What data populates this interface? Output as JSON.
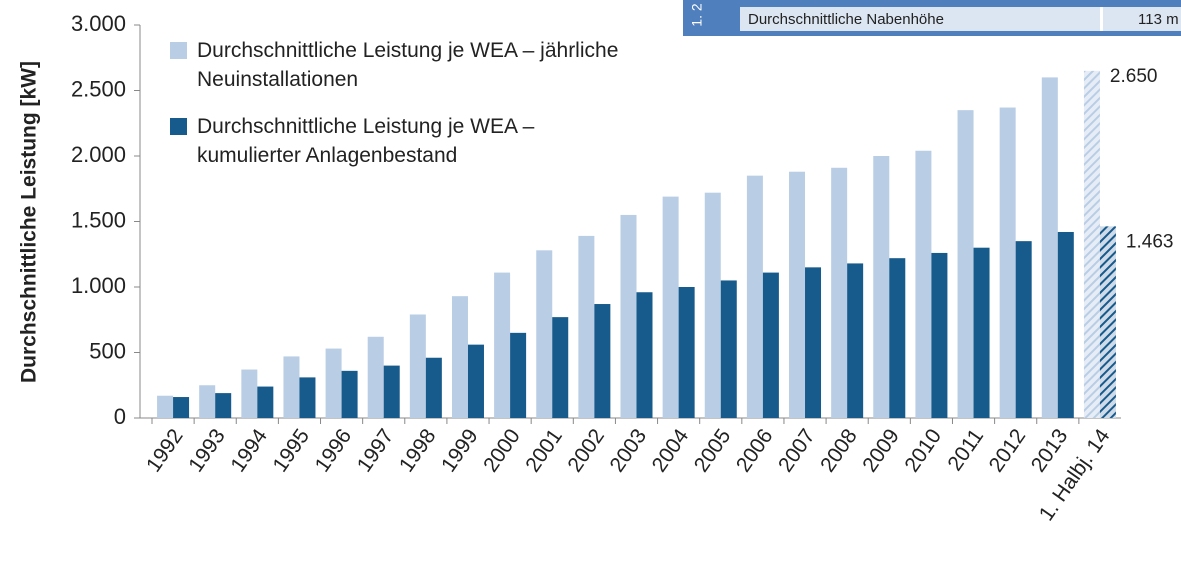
{
  "chart_data": {
    "type": "bar",
    "y_axis_label": "Durchschnittliche Leistung [kW]",
    "categories": [
      "1992",
      "1993",
      "1994",
      "1995",
      "1996",
      "1997",
      "1998",
      "1999",
      "2000",
      "2001",
      "2002",
      "2003",
      "2004",
      "2005",
      "2006",
      "2007",
      "2008",
      "2009",
      "2010",
      "2011",
      "2012",
      "2013",
      "1. Halbj. 14"
    ],
    "series": [
      {
        "name": "Durchschnittliche Leistung  je WEA – jährliche Neuinstallationen",
        "color": "#b9cde5",
        "values": [
          170,
          250,
          370,
          470,
          530,
          620,
          790,
          930,
          1110,
          1280,
          1390,
          1550,
          1690,
          1720,
          1850,
          1880,
          1910,
          2000,
          2040,
          2350,
          2370,
          2600,
          2650
        ],
        "value_labels": [
          null,
          null,
          null,
          null,
          null,
          null,
          null,
          null,
          null,
          null,
          null,
          null,
          null,
          null,
          null,
          null,
          null,
          null,
          null,
          null,
          null,
          null,
          "2.650"
        ]
      },
      {
        "name": "Durchschnittliche Leistung  je WEA – kumulierter Anlagenbestand",
        "color": "#175a8c",
        "values": [
          160,
          190,
          240,
          310,
          360,
          400,
          460,
          560,
          650,
          770,
          870,
          960,
          1000,
          1050,
          1110,
          1150,
          1180,
          1220,
          1260,
          1300,
          1350,
          1420,
          1463
        ],
        "value_labels": [
          null,
          null,
          null,
          null,
          null,
          null,
          null,
          null,
          null,
          null,
          null,
          null,
          null,
          null,
          null,
          null,
          null,
          null,
          null,
          null,
          null,
          null,
          "1.463"
        ]
      }
    ],
    "hatch_last": true,
    "ylim": [
      0,
      3000
    ],
    "yticks": [
      0,
      500,
      {
        "value": 1000,
        "label": "1.000"
      },
      {
        "value": 1500,
        "label": "1.500"
      },
      {
        "value": 2000,
        "label": "2.000"
      },
      {
        "value": 2500,
        "label": "2.500"
      },
      {
        "value": 3000,
        "label": "3.000"
      }
    ],
    "legend": "top-left",
    "overlay_table": {
      "tab": "1. 2",
      "label": "Durchschnittliche Nabenhöhe",
      "value": "113 m"
    }
  }
}
